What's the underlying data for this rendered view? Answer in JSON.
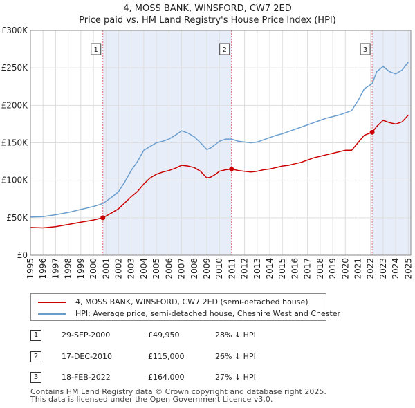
{
  "title": "4, MOSS BANK, WINSFORD, CW7 2ED",
  "subtitle": "Price paid vs. HM Land Registry's House Price Index (HPI)",
  "chart_data": {
    "type": "line",
    "x_range": [
      1995,
      2025.2
    ],
    "ylim": [
      0,
      300000
    ],
    "y_ticks": [
      {
        "value": 0,
        "label": "£0"
      },
      {
        "value": 50000,
        "label": "£50K"
      },
      {
        "value": 100000,
        "label": "£100K"
      },
      {
        "value": 150000,
        "label": "£150K"
      },
      {
        "value": 200000,
        "label": "£200K"
      },
      {
        "value": 250000,
        "label": "£250K"
      },
      {
        "value": 300000,
        "label": "£300K"
      }
    ],
    "x_ticks": [
      "1995",
      "1996",
      "1997",
      "1998",
      "1999",
      "2000",
      "2001",
      "2002",
      "2003",
      "2004",
      "2005",
      "2006",
      "2007",
      "2008",
      "2009",
      "2010",
      "2011",
      "2012",
      "2013",
      "2014",
      "2015",
      "2016",
      "2017",
      "2018",
      "2019",
      "2020",
      "2021",
      "2022",
      "2023",
      "2024",
      "2025"
    ],
    "grid": true,
    "shaded_periods": [
      [
        2000.75,
        2010.96
      ],
      [
        2022.13,
        2025.2
      ]
    ],
    "series": [
      {
        "name": "4, MOSS BANK, WINSFORD, CW7 2ED (semi-detached house)",
        "color": "#cc0000",
        "x": [
          1995.0,
          1996.0,
          1997.0,
          1998.0,
          1999.0,
          2000.0,
          2000.75,
          2001.5,
          2002.0,
          2002.5,
          2003.0,
          2003.5,
          2004.0,
          2004.5,
          2005.0,
          2005.5,
          2006.0,
          2006.5,
          2007.0,
          2007.5,
          2008.0,
          2008.5,
          2009.0,
          2009.3,
          2009.7,
          2010.0,
          2010.5,
          2010.96,
          2011.5,
          2012.0,
          2012.5,
          2013.0,
          2013.5,
          2014.0,
          2014.5,
          2015.0,
          2015.5,
          2016.0,
          2016.5,
          2017.0,
          2017.5,
          2018.0,
          2018.5,
          2019.0,
          2019.5,
          2020.0,
          2020.5,
          2021.0,
          2021.5,
          2022.13,
          2022.5,
          2023.0,
          2023.5,
          2024.0,
          2024.5,
          2025.0
        ],
        "y": [
          37000,
          36500,
          38000,
          41000,
          44000,
          47000,
          49950,
          57000,
          62000,
          70000,
          78000,
          85000,
          95000,
          103000,
          108000,
          111000,
          113000,
          116000,
          120000,
          119000,
          117000,
          112000,
          103000,
          104000,
          108000,
          112000,
          114000,
          115000,
          113000,
          112000,
          111000,
          112000,
          114000,
          115000,
          117000,
          119000,
          120000,
          122000,
          124000,
          127000,
          130000,
          132000,
          134000,
          136000,
          138000,
          140000,
          140000,
          150000,
          160000,
          164000,
          172000,
          180000,
          177000,
          175000,
          178000,
          187000
        ]
      },
      {
        "name": "HPI: Average price, semi-detached house, Cheshire West and Chester",
        "color": "#6a9ecf",
        "x": [
          1995.0,
          1996.0,
          1997.0,
          1998.0,
          1999.0,
          2000.0,
          2000.75,
          2001.5,
          2002.0,
          2002.5,
          2003.0,
          2003.5,
          2004.0,
          2004.5,
          2005.0,
          2005.5,
          2006.0,
          2006.5,
          2007.0,
          2007.5,
          2008.0,
          2008.5,
          2009.0,
          2009.3,
          2009.7,
          2010.0,
          2010.5,
          2010.96,
          2011.5,
          2012.0,
          2012.5,
          2013.0,
          2013.5,
          2014.0,
          2014.5,
          2015.0,
          2015.5,
          2016.0,
          2016.5,
          2017.0,
          2017.5,
          2018.0,
          2018.5,
          2019.0,
          2019.5,
          2020.0,
          2020.5,
          2021.0,
          2021.5,
          2022.13,
          2022.5,
          2023.0,
          2023.5,
          2024.0,
          2024.5,
          2025.0
        ],
        "y": [
          51000,
          51500,
          54000,
          57000,
          61000,
          65000,
          69000,
          78000,
          85000,
          98000,
          113000,
          125000,
          140000,
          145000,
          150000,
          152000,
          155000,
          160000,
          166000,
          163000,
          158000,
          150000,
          141000,
          143000,
          148000,
          152000,
          155000,
          155000,
          152000,
          151000,
          150000,
          151000,
          154000,
          157000,
          160000,
          162000,
          165000,
          168000,
          171000,
          174000,
          177000,
          180000,
          183000,
          185000,
          187000,
          190000,
          193000,
          206000,
          222000,
          229000,
          245000,
          252000,
          245000,
          242000,
          247000,
          258000
        ]
      }
    ],
    "sales": [
      {
        "num": "1",
        "x": 2000.75,
        "y": 49950
      },
      {
        "num": "2",
        "x": 2010.96,
        "y": 115000
      },
      {
        "num": "3",
        "x": 2022.13,
        "y": 164000
      }
    ]
  },
  "legend": {
    "property_label": "4, MOSS BANK, WINSFORD, CW7 2ED (semi-detached house)",
    "hpi_label": "HPI: Average price, semi-detached house, Cheshire West and Chester"
  },
  "sales_table": [
    {
      "num": "1",
      "date": "29-SEP-2000",
      "price": "£49,950",
      "hpi": "28% ↓ HPI"
    },
    {
      "num": "2",
      "date": "17-DEC-2010",
      "price": "£115,000",
      "hpi": "26% ↓ HPI"
    },
    {
      "num": "3",
      "date": "18-FEB-2022",
      "price": "£164,000",
      "hpi": "27% ↓ HPI"
    }
  ],
  "footer": {
    "line1": "Contains HM Land Registry data © Crown copyright and database right 2025.",
    "line2": "This data is licensed under the Open Government Licence v3.0."
  },
  "colors": {
    "property": "#cc0000",
    "hpi": "#6a9ecf",
    "shade": "#e8eef9",
    "grid": "#dddddd",
    "marker_line": "#e07070"
  }
}
